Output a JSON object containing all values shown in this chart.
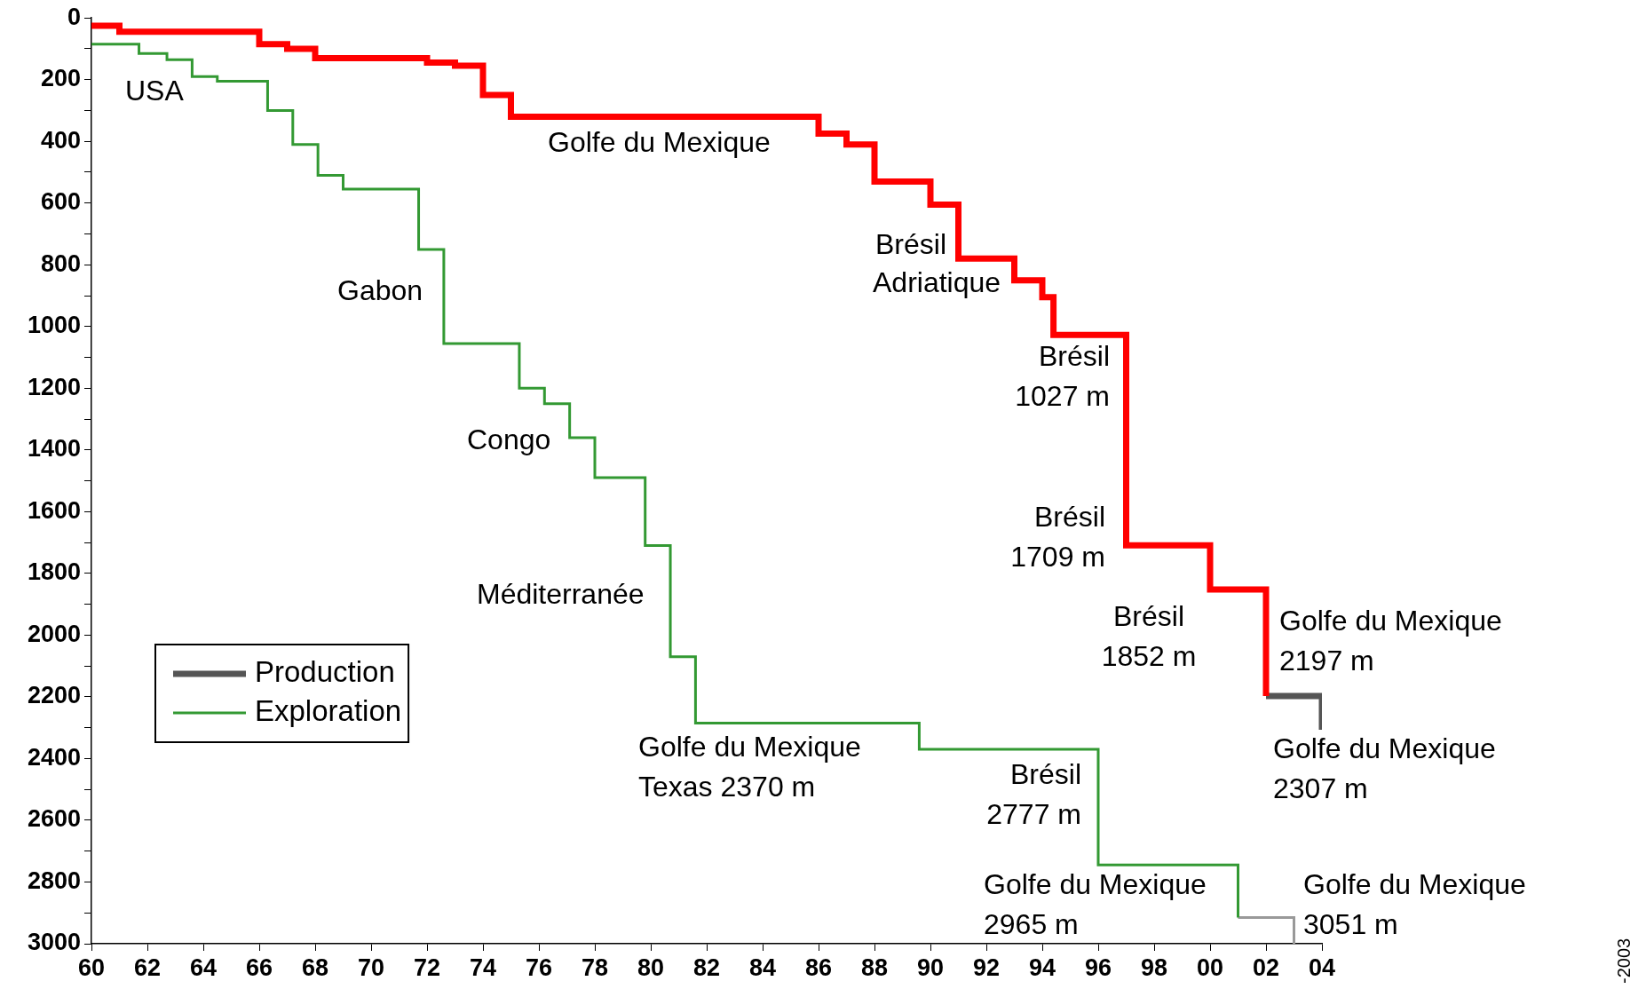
{
  "chart_data": {
    "type": "step",
    "xlim": [
      1960,
      2004
    ],
    "xticks": [
      {
        "value": 1960,
        "label": "60"
      },
      {
        "value": 1962,
        "label": "62"
      },
      {
        "value": 1964,
        "label": "64"
      },
      {
        "value": 1966,
        "label": "66"
      },
      {
        "value": 1968,
        "label": "68"
      },
      {
        "value": 1970,
        "label": "70"
      },
      {
        "value": 1972,
        "label": "72"
      },
      {
        "value": 1974,
        "label": "74"
      },
      {
        "value": 1976,
        "label": "76"
      },
      {
        "value": 1978,
        "label": "78"
      },
      {
        "value": 1980,
        "label": "80"
      },
      {
        "value": 1982,
        "label": "82"
      },
      {
        "value": 1984,
        "label": "84"
      },
      {
        "value": 1986,
        "label": "86"
      },
      {
        "value": 1988,
        "label": "88"
      },
      {
        "value": 1990,
        "label": "90"
      },
      {
        "value": 1992,
        "label": "92"
      },
      {
        "value": 1994,
        "label": "94"
      },
      {
        "value": 1996,
        "label": "96"
      },
      {
        "value": 1998,
        "label": "98"
      },
      {
        "value": 2000,
        "label": "00"
      },
      {
        "value": 2002,
        "label": "02"
      },
      {
        "value": 2004,
        "label": "04"
      }
    ],
    "ylim": [
      3000,
      0
    ],
    "yticks": [
      0,
      {
        "value": 100,
        "label": null
      },
      200,
      {
        "value": 300,
        "label": null
      },
      400,
      {
        "value": 500,
        "label": null
      },
      600,
      {
        "value": 700,
        "label": null
      },
      800,
      {
        "value": 900,
        "label": null
      },
      1000,
      {
        "value": 1100,
        "label": null
      },
      1200,
      {
        "value": 1300,
        "label": null
      },
      1400,
      {
        "value": 1500,
        "label": null
      },
      1600,
      {
        "value": 1700,
        "label": null
      },
      1800,
      {
        "value": 1900,
        "label": null
      },
      2000,
      {
        "value": 2100,
        "label": null
      },
      2200,
      {
        "value": 2300,
        "label": null
      },
      2400,
      {
        "value": 2500,
        "label": null
      },
      2600,
      {
        "value": 2700,
        "label": null
      },
      2800,
      {
        "value": 2900,
        "label": null
      },
      3000
    ],
    "grid": false,
    "legend": "bottom left",
    "series": [
      {
        "color": "#ff0000",
        "x": [
          1960,
          1961,
          1966,
          1967,
          1968,
          1972,
          1973,
          1974,
          1975,
          1986,
          1987,
          1988,
          1990,
          1991,
          1993,
          1994,
          1994.4,
          1997,
          2000,
          2002
        ],
        "values": [
          25,
          45,
          85,
          100,
          130,
          145,
          155,
          250,
          320,
          375,
          410,
          530,
          605,
          780,
          850,
          905,
          1027,
          1709,
          1852,
          2197
        ]
      },
      {
        "name": "Production",
        "color": "#555555",
        "x": [
          2002,
          2004
        ],
        "values": [
          2197,
          2307
        ]
      },
      {
        "name": "Exploration",
        "color": "#339933",
        "x": [
          1960,
          1961.7,
          1962.7,
          1963.6,
          1964.5,
          1966.3,
          1967.2,
          1968.1,
          1969,
          1971.7,
          1972.6,
          1975.3,
          1976.2,
          1977.1,
          1978,
          1979.8,
          1980.7,
          1981.6,
          1989.6,
          1996,
          2001
        ],
        "values": [
          85,
          115,
          135,
          190,
          205,
          300,
          410,
          510,
          555,
          750,
          1055,
          1200,
          1250,
          1360,
          1490,
          1710,
          2070,
          2285,
          2370,
          2745,
          2915
        ]
      },
      {
        "color": "#999999",
        "x": [
          2001,
          2003,
          2003
        ],
        "values": [
          2915,
          2915,
          3000
        ]
      }
    ],
    "annotations": [
      "USA",
      "Golfe du Mexique",
      "Brésil",
      "Adriatique",
      "Brésil\n1027 m",
      "Gabon",
      "Congo",
      "Brésil\n1709 m",
      "Méditerranée",
      "Brésil\n1852 m",
      "Golfe du Mexique\n2197 m",
      "Golfe du Mexique\nTexas 2370 m",
      "Brésil\n2777 m",
      "Golfe du Mexique\n2307 m",
      "Golfe du Mexique\n2965 m",
      "Golfe du Mexique\n3051 m",
      "-2003"
    ]
  }
}
